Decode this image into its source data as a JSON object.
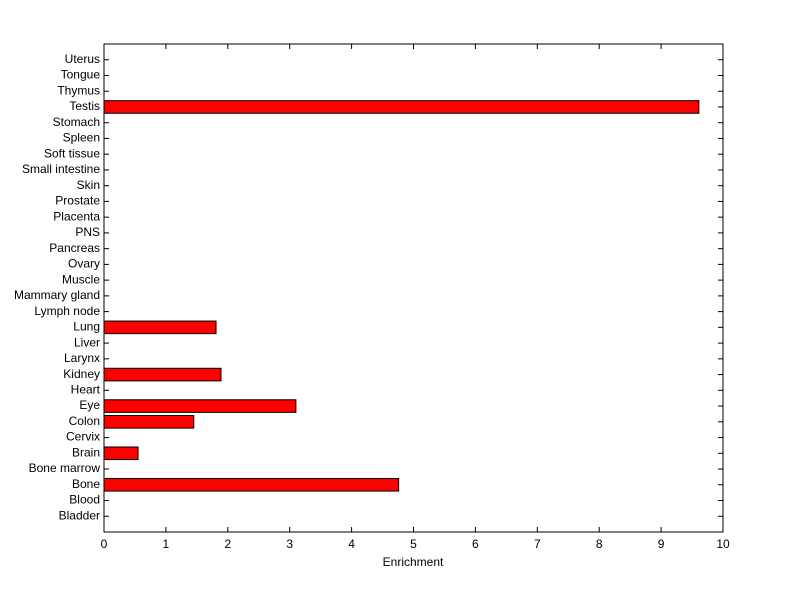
{
  "chart_data": {
    "type": "barh",
    "xlabel": "Enrichment",
    "categories": [
      "Bladder",
      "Blood",
      "Bone",
      "Bone marrow",
      "Brain",
      "Cervix",
      "Colon",
      "Eye",
      "Heart",
      "Kidney",
      "Larynx",
      "Liver",
      "Lung",
      "Lymph node",
      "Mammary gland",
      "Muscle",
      "Ovary",
      "Pancreas",
      "PNS",
      "Placenta",
      "Prostate",
      "Skin",
      "Small intestine",
      "Soft tissue",
      "Spleen",
      "Stomach",
      "Testis",
      "Thymus",
      "Tongue",
      "Uterus"
    ],
    "values": [
      0,
      0,
      4.76,
      0,
      0.55,
      0,
      1.45,
      3.1,
      0,
      1.89,
      0,
      0,
      1.81,
      0,
      0,
      0,
      0,
      0,
      0,
      0,
      0,
      0,
      0,
      0,
      0,
      0,
      9.61,
      0,
      0,
      0
    ],
    "color": "#ff0000",
    "xlim": [
      0,
      10
    ],
    "xticks": [
      0,
      1,
      2,
      3,
      4,
      5,
      6,
      7,
      8,
      9,
      10
    ]
  }
}
